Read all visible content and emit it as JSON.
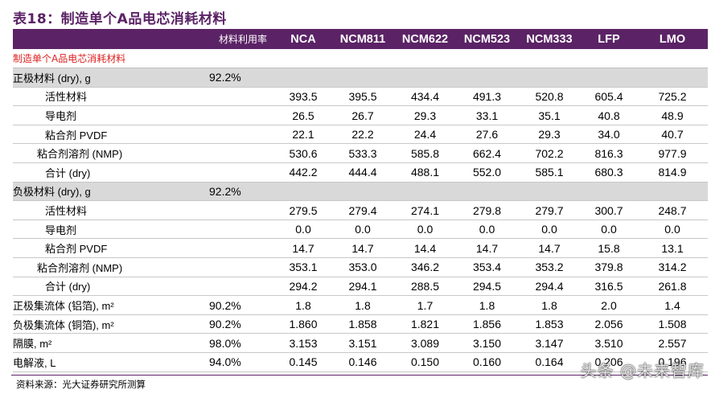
{
  "title": "表18：制造单个A品电芯消耗材料",
  "header": {
    "rate_label": "材料利用率",
    "columns": [
      "NCA",
      "NCM811",
      "NCM622",
      "NCM523",
      "NCM333",
      "LFP",
      "LMO"
    ]
  },
  "section_label": "制造单个A品电芯消耗材料",
  "rows": [
    {
      "label": "正极材料 (dry), g",
      "rate": "92.2%",
      "values": [
        "",
        "",
        "",
        "",
        "",
        "",
        ""
      ],
      "kind": "group"
    },
    {
      "label": "活性材料",
      "rate": "",
      "values": [
        "393.5",
        "395.5",
        "434.4",
        "491.3",
        "520.8",
        "605.4",
        "725.2"
      ],
      "kind": "sub"
    },
    {
      "label": "导电剂",
      "rate": "",
      "values": [
        "26.5",
        "26.7",
        "29.3",
        "33.1",
        "35.1",
        "40.8",
        "48.9"
      ],
      "kind": "sub"
    },
    {
      "label": "粘合剂 PVDF",
      "rate": "",
      "values": [
        "22.1",
        "22.2",
        "24.4",
        "27.6",
        "29.3",
        "34.0",
        "40.7"
      ],
      "kind": "sub"
    },
    {
      "label": "粘合剂溶剂 (NMP)",
      "rate": "",
      "values": [
        "530.6",
        "533.3",
        "585.8",
        "662.4",
        "702.2",
        "816.3",
        "977.9"
      ],
      "kind": "sub2"
    },
    {
      "label": "合计 (dry)",
      "rate": "",
      "values": [
        "442.2",
        "444.4",
        "488.1",
        "552.0",
        "585.1",
        "680.3",
        "814.9"
      ],
      "kind": "sub"
    },
    {
      "label": "负极材料 (dry), g",
      "rate": "92.2%",
      "values": [
        "",
        "",
        "",
        "",
        "",
        "",
        ""
      ],
      "kind": "group"
    },
    {
      "label": "活性材料",
      "rate": "",
      "values": [
        "279.5",
        "279.4",
        "274.1",
        "279.8",
        "279.7",
        "300.7",
        "248.7"
      ],
      "kind": "sub"
    },
    {
      "label": "导电剂",
      "rate": "",
      "values": [
        "0.0",
        "0.0",
        "0.0",
        "0.0",
        "0.0",
        "0.0",
        "0.0"
      ],
      "kind": "sub"
    },
    {
      "label": "粘合剂 PVDF",
      "rate": "",
      "values": [
        "14.7",
        "14.7",
        "14.4",
        "14.7",
        "14.7",
        "15.8",
        "13.1"
      ],
      "kind": "sub"
    },
    {
      "label": "粘合剂溶剂 (NMP)",
      "rate": "",
      "values": [
        "353.1",
        "353.0",
        "346.2",
        "353.4",
        "353.2",
        "379.8",
        "314.2"
      ],
      "kind": "sub2"
    },
    {
      "label": "合计 (dry)",
      "rate": "",
      "values": [
        "294.2",
        "294.1",
        "288.5",
        "294.5",
        "294.4",
        "316.5",
        "261.8"
      ],
      "kind": "sub"
    },
    {
      "label": "正极集流体 (铝箔), m²",
      "rate": "90.2%",
      "values": [
        "1.8",
        "1.8",
        "1.7",
        "1.8",
        "1.8",
        "2.0",
        "1.4"
      ],
      "kind": "top"
    },
    {
      "label": "负极集流体 (铜箔), m²",
      "rate": "90.2%",
      "values": [
        "1.860",
        "1.858",
        "1.821",
        "1.856",
        "1.853",
        "2.056",
        "1.508"
      ],
      "kind": "top"
    },
    {
      "label": "隔膜, m²",
      "rate": "98.0%",
      "values": [
        "3.153",
        "3.151",
        "3.089",
        "3.150",
        "3.147",
        "3.510",
        "2.557"
      ],
      "kind": "top"
    },
    {
      "label": "电解液, L",
      "rate": "94.0%",
      "values": [
        "0.145",
        "0.146",
        "0.150",
        "0.160",
        "0.164",
        "0.206",
        "0.196"
      ],
      "kind": "top"
    }
  ],
  "source": "资料来源：光大证券研究所测算",
  "watermark": "头条 @未来智库"
}
